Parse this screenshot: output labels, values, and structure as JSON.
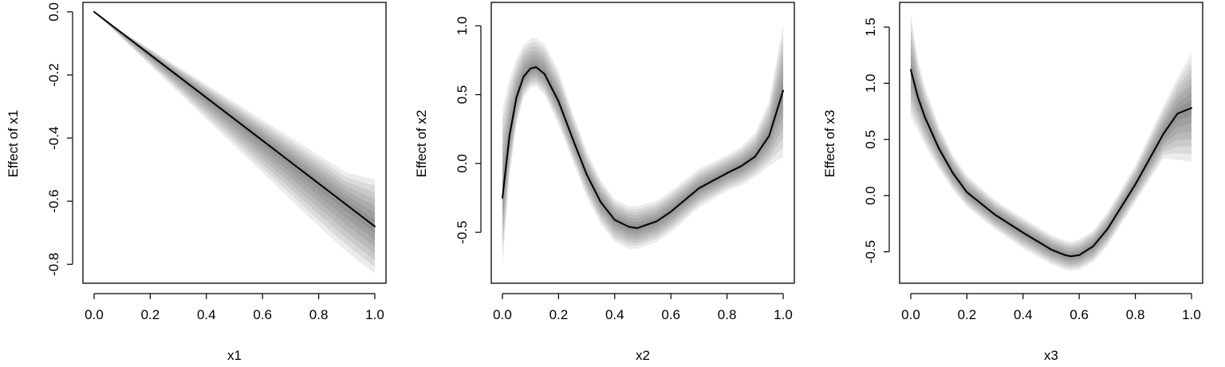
{
  "chart_data": [
    {
      "type": "line",
      "xlabel": "x1",
      "ylabel": "Effect of x1",
      "xlim": [
        0,
        1
      ],
      "ylim": [
        -0.86,
        0.03
      ],
      "xticks": [
        0,
        0.2,
        0.4,
        0.6,
        0.8,
        1
      ],
      "xtick_labels": [
        "0.0",
        "0.2",
        "0.4",
        "0.6",
        "0.8",
        "1.0"
      ],
      "yticks": [
        0,
        -0.2,
        -0.4,
        -0.6,
        -0.8
      ],
      "ytick_labels": [
        "0.0",
        "-0.2",
        "-0.4",
        "-0.6",
        "-0.8"
      ],
      "grid": false,
      "band_style": "gray gradient credible band",
      "series": [
        {
          "x": [
            0,
            0.1,
            0.2,
            0.3,
            0.4,
            0.5,
            0.6,
            0.7,
            0.8,
            0.9,
            1.0
          ],
          "y": [
            0.0,
            -0.068,
            -0.136,
            -0.204,
            -0.272,
            -0.34,
            -0.408,
            -0.476,
            -0.544,
            -0.612,
            -0.68
          ],
          "lower": [
            0.0,
            -0.085,
            -0.17,
            -0.255,
            -0.34,
            -0.425,
            -0.51,
            -0.595,
            -0.68,
            -0.76,
            -0.83
          ],
          "upper": [
            0.0,
            -0.062,
            -0.118,
            -0.174,
            -0.23,
            -0.286,
            -0.342,
            -0.398,
            -0.454,
            -0.51,
            -0.53
          ]
        }
      ]
    },
    {
      "type": "line",
      "xlabel": "x2",
      "ylabel": "Effect of x2",
      "xlim": [
        0,
        1
      ],
      "ylim": [
        -0.87,
        1.17
      ],
      "xticks": [
        0,
        0.2,
        0.4,
        0.6,
        0.8,
        1
      ],
      "xtick_labels": [
        "0.0",
        "0.2",
        "0.4",
        "0.6",
        "0.8",
        "1.0"
      ],
      "yticks": [
        -0.5,
        0,
        0.5,
        1
      ],
      "ytick_labels": [
        "-0.5",
        "0.0",
        "0.5",
        "1.0"
      ],
      "grid": false,
      "band_style": "gray gradient credible band",
      "series": [
        {
          "x": [
            0,
            0.025,
            0.05,
            0.075,
            0.1,
            0.12,
            0.15,
            0.2,
            0.25,
            0.3,
            0.35,
            0.4,
            0.45,
            0.48,
            0.55,
            0.6,
            0.7,
            0.8,
            0.85,
            0.9,
            0.95,
            1.0
          ],
          "y": [
            -0.25,
            0.2,
            0.48,
            0.63,
            0.69,
            0.7,
            0.65,
            0.45,
            0.18,
            -0.08,
            -0.28,
            -0.41,
            -0.46,
            -0.47,
            -0.42,
            -0.35,
            -0.18,
            -0.07,
            -0.02,
            0.05,
            0.2,
            0.53
          ],
          "lower": [
            -0.74,
            -0.1,
            0.28,
            0.48,
            0.55,
            0.56,
            0.5,
            0.28,
            0.02,
            -0.24,
            -0.44,
            -0.57,
            -0.62,
            -0.62,
            -0.57,
            -0.5,
            -0.32,
            -0.2,
            -0.16,
            -0.1,
            -0.02,
            0.05
          ],
          "upper": [
            0.4,
            0.62,
            0.76,
            0.86,
            0.91,
            0.91,
            0.87,
            0.67,
            0.37,
            0.09,
            -0.12,
            -0.26,
            -0.31,
            -0.31,
            -0.27,
            -0.2,
            -0.04,
            0.06,
            0.12,
            0.22,
            0.45,
            1.02
          ]
        }
      ]
    },
    {
      "type": "line",
      "xlabel": "x3",
      "ylabel": "Effect of x3",
      "xlim": [
        0,
        1
      ],
      "ylim": [
        -0.78,
        1.72
      ],
      "xticks": [
        0,
        0.2,
        0.4,
        0.6,
        0.8,
        1
      ],
      "xtick_labels": [
        "0.0",
        "0.2",
        "0.4",
        "0.6",
        "0.8",
        "1.0"
      ],
      "yticks": [
        -0.5,
        0,
        0.5,
        1,
        1.5
      ],
      "ytick_labels": [
        "-0.5",
        "0.0",
        "0.5",
        "1.0",
        "1.5"
      ],
      "grid": false,
      "band_style": "gray gradient credible band",
      "series": [
        {
          "x": [
            0,
            0.025,
            0.05,
            0.1,
            0.15,
            0.2,
            0.3,
            0.4,
            0.5,
            0.55,
            0.57,
            0.6,
            0.65,
            0.7,
            0.8,
            0.9,
            0.95,
            1.0
          ],
          "y": [
            1.12,
            0.88,
            0.7,
            0.42,
            0.2,
            0.03,
            -0.17,
            -0.33,
            -0.48,
            -0.53,
            -0.54,
            -0.53,
            -0.45,
            -0.3,
            0.1,
            0.55,
            0.73,
            0.78
          ],
          "lower": [
            0.7,
            0.58,
            0.45,
            0.24,
            0.05,
            -0.1,
            -0.3,
            -0.47,
            -0.61,
            -0.66,
            -0.67,
            -0.66,
            -0.59,
            -0.45,
            -0.06,
            0.33,
            0.32,
            0.3
          ],
          "upper": [
            1.62,
            1.22,
            0.97,
            0.62,
            0.36,
            0.18,
            -0.04,
            -0.2,
            -0.35,
            -0.4,
            -0.41,
            -0.39,
            -0.31,
            -0.15,
            0.27,
            0.8,
            1.05,
            1.27
          ]
        }
      ]
    }
  ]
}
